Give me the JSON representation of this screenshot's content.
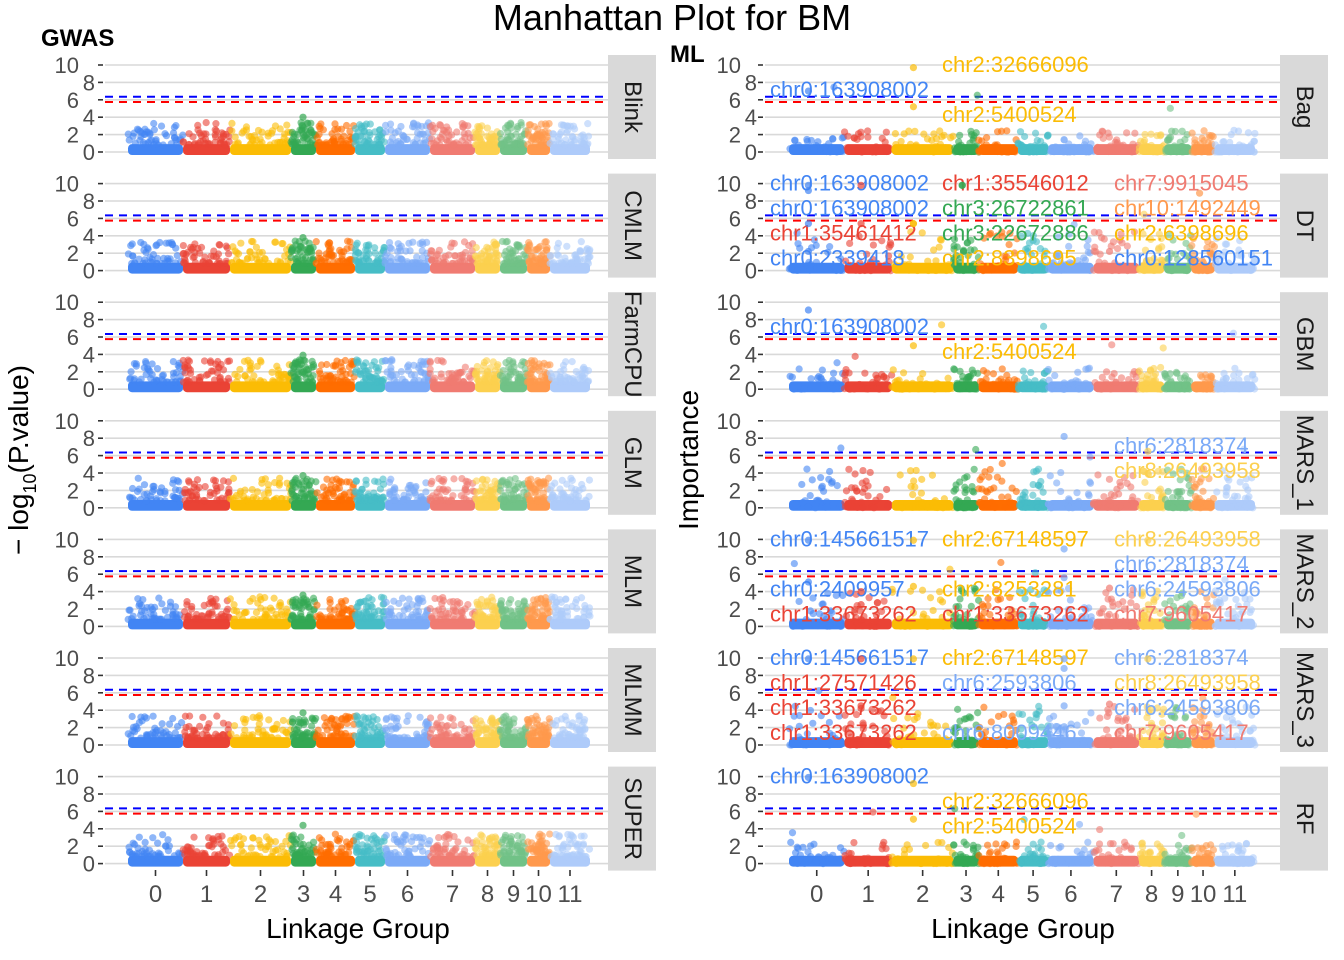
{
  "chart_data": {
    "type": "scatter",
    "title": "Manhattan Plot for BM",
    "xlabel": "Linkage Group",
    "chromosomes": [
      "0",
      "1",
      "2",
      "3",
      "4",
      "5",
      "6",
      "7",
      "8",
      "9",
      "10",
      "11"
    ],
    "chromosome_colors": [
      "#4285F4",
      "#EA4335",
      "#FBBC05",
      "#34A853",
      "#FF6D00",
      "#46BDC6",
      "#7BAAF7",
      "#F07B72",
      "#FCD04F",
      "#71C287",
      "#FF994D",
      "#AECBFA"
    ],
    "ylim": [
      0,
      10
    ],
    "yticks": [
      "0",
      "2",
      "4",
      "6",
      "8",
      "10"
    ],
    "thresholds": [
      {
        "color": "#0000FF",
        "value": 6.35
      },
      {
        "color": "#FF0000",
        "value": 5.75
      }
    ],
    "grid": true,
    "groups": [
      {
        "name": "GWAS",
        "ylabel": "−log10(P.value)",
        "ylabel_main": "− log",
        "ylabel_sub": "10",
        "ylabel_rest": "(P.value)",
        "panels": [
          {
            "name": "Blink",
            "peak": 4.0,
            "labels": []
          },
          {
            "name": "CMLM",
            "peak": 3.8,
            "labels": []
          },
          {
            "name": "FarmCPU",
            "peak": 3.9,
            "labels": []
          },
          {
            "name": "GLM",
            "peak": 3.7,
            "labels": []
          },
          {
            "name": "MLM",
            "peak": 3.6,
            "labels": []
          },
          {
            "name": "MLMM",
            "peak": 3.7,
            "labels": []
          },
          {
            "name": "SUPER",
            "peak": 4.4,
            "labels": []
          }
        ]
      },
      {
        "name": "ML",
        "ylabel": "Importance",
        "panels": [
          {
            "name": "Bag",
            "labels": [
              {
                "text": "chr0:163908002",
                "chr": 0,
                "y": 6.4
              },
              {
                "text": "chr2:32666096",
                "chr": 2,
                "y": 9.1
              },
              {
                "text": "chr2:5400524",
                "chr": 2,
                "y": 4.6
              }
            ]
          },
          {
            "name": "DT",
            "labels": [
              {
                "text": "chr0:163908002",
                "chr": 0,
                "y": 8.6
              },
              {
                "text": "chr0:163908002",
                "chr": 0,
                "y": 9.2
              },
              {
                "text": "chr1:35546012",
                "chr": 1,
                "y": 9.2
              },
              {
                "text": "chr3:26722861",
                "chr": 3,
                "y": 9.2
              },
              {
                "text": "chr3:22672886",
                "chr": 3,
                "y": 9.2
              },
              {
                "text": "chr10:1492449",
                "chr": 10,
                "y": 8.3
              },
              {
                "text": "chr1:35461412",
                "chr": 1,
                "y": 4.8
              },
              {
                "text": "chr0:2339418",
                "chr": 0,
                "y": 4.8
              },
              {
                "text": "chr2:8398695",
                "chr": 2,
                "y": 4.8
              },
              {
                "text": "chr2:6398696",
                "chr": 2,
                "y": 4.8
              },
              {
                "text": "chr0:128560151",
                "chr": 0,
                "y": 1.6
              },
              {
                "text": "chr7:9915045",
                "chr": 7,
                "y": 1.6
              }
            ]
          },
          {
            "name": "GBM",
            "labels": [
              {
                "text": "chr0:163908002",
                "chr": 0,
                "y": 8.5
              },
              {
                "text": "chr2:5400524",
                "chr": 2,
                "y": 4.4
              }
            ]
          },
          {
            "name": "MARS_1",
            "labels": [
              {
                "text": "chr6:2818374",
                "chr": 6,
                "y": 7.6
              },
              {
                "text": "chr8:26493958",
                "chr": 8,
                "y": 5.9
              }
            ]
          },
          {
            "name": "MARS_2",
            "labels": [
              {
                "text": "chr0:145661517",
                "chr": 0,
                "y": 9.3
              },
              {
                "text": "chr2:67148597",
                "chr": 2,
                "y": 9.3
              },
              {
                "text": "chr6:2818374",
                "chr": 6,
                "y": 8.3
              },
              {
                "text": "chr8:26493958",
                "chr": 8,
                "y": 9.3
              },
              {
                "text": "chr0:2409957",
                "chr": 0,
                "y": 4.5
              },
              {
                "text": "chr1:33673262",
                "chr": 1,
                "y": 3.4
              },
              {
                "text": "chr2:8253281",
                "chr": 2,
                "y": 4.0
              },
              {
                "text": "chr6:24593806",
                "chr": 6,
                "y": 5.0
              },
              {
                "text": "chr7:9605417",
                "chr": 7,
                "y": 3.8
              },
              {
                "text": "chr1:33673262",
                "chr": 1,
                "y": 1.9
              }
            ]
          },
          {
            "name": "MARS_3",
            "labels": [
              {
                "text": "chr0:145661517",
                "chr": 0,
                "y": 9.3
              },
              {
                "text": "chr2:67148597",
                "chr": 2,
                "y": 9.3
              },
              {
                "text": "chr1:27571426",
                "chr": 1,
                "y": 9.3
              },
              {
                "text": "chr6:2818374",
                "chr": 6,
                "y": 9.3
              },
              {
                "text": "chr8:26493958",
                "chr": 8,
                "y": 9.3
              },
              {
                "text": "chr6:2593806",
                "chr": 6,
                "y": 8.2
              },
              {
                "text": "chr1:33673262",
                "chr": 1,
                "y": 3.9
              },
              {
                "text": "chr1:33673262",
                "chr": 1,
                "y": 3.6
              },
              {
                "text": "chr6:24593806",
                "chr": 6,
                "y": 3.9
              },
              {
                "text": "chr7:9605417",
                "chr": 7,
                "y": 4.1
              },
              {
                "text": "chr6:8009446",
                "chr": 6,
                "y": 1.5
              }
            ]
          },
          {
            "name": "RF",
            "labels": [
              {
                "text": "chr0:163908002",
                "chr": 0,
                "y": 9.3
              },
              {
                "text": "chr2:32666096",
                "chr": 2,
                "y": 8.6
              },
              {
                "text": "chr2:5400524",
                "chr": 2,
                "y": 4.5
              }
            ]
          }
        ]
      }
    ]
  }
}
